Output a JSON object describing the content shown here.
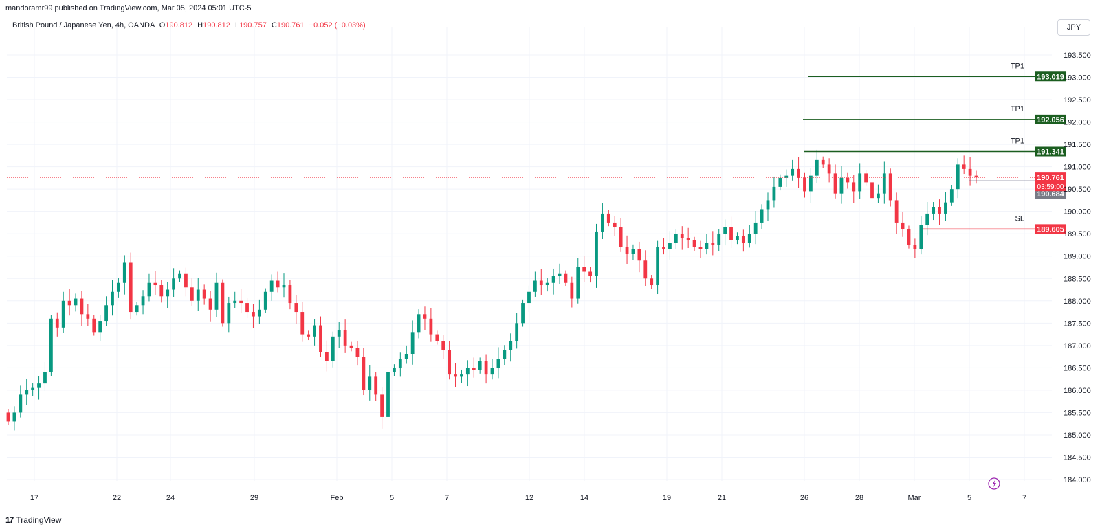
{
  "header": {
    "publisher": "mandoramr99 published on TradingView.com, Mar 05, 2024 05:01 UTC-5"
  },
  "legend": {
    "symbol": "British Pound / Japanese Yen, 4h, OANDA",
    "o_label": "O",
    "o_value": "190.812",
    "h_label": "H",
    "h_value": "190.812",
    "l_label": "L",
    "l_value": "190.757",
    "c_label": "C",
    "c_value": "190.761",
    "change": "−0.052 (−0.03%)"
  },
  "currency_button": "JPY",
  "footer": {
    "logo_mark": "17",
    "logo_text": "TradingView"
  },
  "colors": {
    "up": "#089981",
    "down": "#f23645",
    "tp_line": "#1b5e20",
    "sl_line": "#f23645",
    "grid": "#f0f3fa",
    "axis_text": "#131722",
    "current_label": "#f23645",
    "mid_label": "#787b86"
  },
  "chart_data": {
    "type": "candlestick",
    "title": "British Pound / Japanese Yen, 4h, OANDA",
    "ylim": [
      183.9,
      193.75
    ],
    "y_ticks": [
      "184.000",
      "184.500",
      "185.000",
      "185.500",
      "186.000",
      "186.500",
      "187.000",
      "187.500",
      "188.000",
      "188.500",
      "189.000",
      "189.500",
      "190.000",
      "190.500",
      "191.000",
      "191.500",
      "192.000",
      "192.500",
      "193.000",
      "193.500"
    ],
    "x_tick_labels": [
      "17",
      "22",
      "24",
      "29",
      "Feb",
      "5",
      "7",
      "12",
      "14",
      "19",
      "21",
      "26",
      "28",
      "Mar",
      "5",
      "7"
    ],
    "grid": true,
    "levels": [
      {
        "name": "TP1",
        "price": 193.019,
        "label": "193.019",
        "kind": "tp"
      },
      {
        "name": "TP1",
        "price": 192.056,
        "label": "192.056",
        "kind": "tp"
      },
      {
        "name": "TP1",
        "price": 191.341,
        "label": "191.341",
        "kind": "tp"
      },
      {
        "name": "SL",
        "price": 189.605,
        "label": "189.605",
        "kind": "sl"
      }
    ],
    "current_price": {
      "price": 190.761,
      "label": "190.761",
      "countdown": "03:59:00"
    },
    "mid_price": {
      "price": 190.684,
      "label": "190.684"
    },
    "closes": [
      185.3,
      185.5,
      185.9,
      186.0,
      186.05,
      186.15,
      186.4,
      187.6,
      187.4,
      188.0,
      187.9,
      188.05,
      187.7,
      187.6,
      187.3,
      187.55,
      187.9,
      188.2,
      188.4,
      188.85,
      187.75,
      187.9,
      188.1,
      188.4,
      188.35,
      188.1,
      188.25,
      188.5,
      188.6,
      188.3,
      188.0,
      188.25,
      188.05,
      187.8,
      188.4,
      187.5,
      187.95,
      188.0,
      187.95,
      187.75,
      187.65,
      187.8,
      188.2,
      188.45,
      188.3,
      188.35,
      187.95,
      187.75,
      187.25,
      187.2,
      187.45,
      186.85,
      186.65,
      187.2,
      187.35,
      187.0,
      186.95,
      186.75,
      186.0,
      186.3,
      185.9,
      185.4,
      186.4,
      186.5,
      186.7,
      186.8,
      187.3,
      187.7,
      187.6,
      187.25,
      187.1,
      186.9,
      186.35,
      186.3,
      186.35,
      186.5,
      186.45,
      186.65,
      186.35,
      186.5,
      186.7,
      186.9,
      187.1,
      187.5,
      187.95,
      188.2,
      188.45,
      188.35,
      188.4,
      188.55,
      188.6,
      188.4,
      188.05,
      188.75,
      188.65,
      188.55,
      189.55,
      189.95,
      189.75,
      189.65,
      189.2,
      189.05,
      189.15,
      188.9,
      188.5,
      188.35,
      189.2,
      189.15,
      189.3,
      189.5,
      189.4,
      189.35,
      189.2,
      189.15,
      189.3,
      189.25,
      189.5,
      189.65,
      189.35,
      189.45,
      189.3,
      189.5,
      189.75,
      190.05,
      190.25,
      190.55,
      190.75,
      190.8,
      190.95,
      190.75,
      190.45,
      190.8,
      191.15,
      191.05,
      190.85,
      190.4,
      190.75,
      190.65,
      190.45,
      190.85,
      190.65,
      190.3,
      190.4,
      190.85,
      190.25,
      189.75,
      189.6,
      189.25,
      189.15,
      189.7,
      189.95,
      190.1,
      189.95,
      190.2,
      190.5,
      191.05,
      190.95,
      190.8,
      190.761
    ]
  }
}
